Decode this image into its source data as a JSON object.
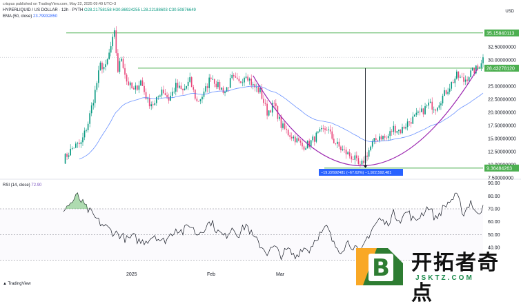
{
  "header": {
    "publisher": "crispus published on TradingView.com, May 22, 2025 09:49 UTC+3",
    "symbol": "HYPERLIQUID / US DOLLAR · 12h · PYTH",
    "ohlc": [
      "O28.21758158",
      "H30.86924255",
      "L28.22188603",
      "C30.50876649"
    ],
    "ema_label": "EMA (50, close)",
    "ema_value": "23.79932850",
    "rsi_label": "RSI (14, close)",
    "rsi_value": "72.90",
    "currency": "USD",
    "brand": "TradingView"
  },
  "watermark": {
    "text": "开拓者奇点",
    "sub": "JSKTZ.COM"
  },
  "colors": {
    "up": "#089981",
    "down": "#e9477b",
    "ema": "#2962ff",
    "arc": "#9c27b0",
    "level": "#4caf50",
    "rsi": "#131722",
    "measure": "#2962ff"
  },
  "chart_data": {
    "type": "candlestick",
    "price_axis": {
      "min": 7.5,
      "max": 37.5,
      "ticks": [
        "32.50000000",
        "30.00000000",
        "25.00000000",
        "22.50000000",
        "20.00000000",
        "17.50000000",
        "15.00000000",
        "12.50000000",
        "10.00000000",
        "7.50000000"
      ],
      "tick_values": [
        32.5,
        30,
        25,
        22.5,
        20,
        17.5,
        15,
        12.5,
        10,
        7.5
      ]
    },
    "x_labels": [
      "2025",
      "Feb",
      "Mar"
    ],
    "levels": [
      {
        "label": "35.15840113",
        "value": 35.1584
      },
      {
        "label": "28.43278120",
        "value": 28.4328
      },
      {
        "label": "9.36484263",
        "value": 9.3648
      }
    ],
    "measure_label": "−19.22692481 (−67.62%) −1,922,592,481",
    "close_marker": "30.50876649",
    "rsi": {
      "ticks": [
        "90.00",
        "80.00",
        "70.00",
        "60.00",
        "50.00",
        "40.00"
      ],
      "tick_values": [
        90,
        80,
        70,
        60,
        50,
        40
      ],
      "overbought": 70,
      "oversold": 30,
      "min": 26,
      "max": 92
    },
    "path_points": [
      [
        0,
        11.0
      ],
      [
        6,
        13.5
      ],
      [
        10,
        14.0
      ],
      [
        14,
        18.0
      ],
      [
        18,
        24.0
      ],
      [
        21,
        29.0
      ],
      [
        24,
        28.5
      ],
      [
        27,
        32.5
      ],
      [
        29,
        35.0
      ],
      [
        31,
        28.0
      ],
      [
        33,
        30.5
      ],
      [
        36,
        26.0
      ],
      [
        40,
        24.0
      ],
      [
        44,
        26.0
      ],
      [
        48,
        22.0
      ],
      [
        52,
        21.5
      ],
      [
        56,
        24.5
      ],
      [
        60,
        22.5
      ],
      [
        64,
        25.0
      ],
      [
        68,
        24.0
      ],
      [
        72,
        26.0
      ],
      [
        76,
        22.0
      ],
      [
        80,
        23.5
      ],
      [
        84,
        27.0
      ],
      [
        88,
        25.0
      ],
      [
        92,
        24.0
      ],
      [
        96,
        26.5
      ],
      [
        100,
        25.5
      ],
      [
        104,
        27.5
      ],
      [
        108,
        25.0
      ],
      [
        112,
        24.0
      ],
      [
        116,
        20.0
      ],
      [
        120,
        21.5
      ],
      [
        124,
        17.5
      ],
      [
        128,
        16.0
      ],
      [
        132,
        15.0
      ],
      [
        136,
        13.5
      ],
      [
        140,
        14.0
      ],
      [
        144,
        15.5
      ],
      [
        148,
        16.5
      ],
      [
        150,
        17.0
      ],
      [
        154,
        14.5
      ],
      [
        158,
        13.0
      ],
      [
        162,
        12.0
      ],
      [
        166,
        11.0
      ],
      [
        169,
        9.4
      ],
      [
        172,
        11.5
      ],
      [
        176,
        14.0
      ],
      [
        180,
        15.5
      ],
      [
        184,
        15.0
      ],
      [
        188,
        17.0
      ],
      [
        192,
        16.5
      ],
      [
        196,
        18.0
      ],
      [
        200,
        19.0
      ],
      [
        204,
        20.0
      ],
      [
        208,
        21.5
      ],
      [
        212,
        21.0
      ],
      [
        216,
        23.0
      ],
      [
        220,
        25.0
      ],
      [
        224,
        27.0
      ],
      [
        228,
        26.0
      ],
      [
        232,
        27.5
      ],
      [
        236,
        28.5
      ],
      [
        239,
        30.5
      ]
    ],
    "rsi_points": [
      [
        0,
        70
      ],
      [
        4,
        74
      ],
      [
        8,
        80
      ],
      [
        12,
        72
      ],
      [
        16,
        66
      ],
      [
        20,
        60
      ],
      [
        24,
        56
      ],
      [
        28,
        52
      ],
      [
        32,
        50
      ],
      [
        36,
        46
      ],
      [
        40,
        48
      ],
      [
        44,
        44
      ],
      [
        48,
        46
      ],
      [
        52,
        50
      ],
      [
        56,
        44
      ],
      [
        60,
        48
      ],
      [
        64,
        55
      ],
      [
        68,
        52
      ],
      [
        72,
        58
      ],
      [
        76,
        50
      ],
      [
        80,
        55
      ],
      [
        84,
        60
      ],
      [
        88,
        52
      ],
      [
        92,
        48
      ],
      [
        96,
        56
      ],
      [
        100,
        50
      ],
      [
        104,
        58
      ],
      [
        108,
        48
      ],
      [
        112,
        42
      ],
      [
        116,
        36
      ],
      [
        120,
        40
      ],
      [
        124,
        34
      ],
      [
        128,
        38
      ],
      [
        132,
        32
      ],
      [
        136,
        40
      ],
      [
        140,
        38
      ],
      [
        144,
        48
      ],
      [
        148,
        52
      ],
      [
        150,
        56
      ],
      [
        154,
        42
      ],
      [
        158,
        38
      ],
      [
        162,
        44
      ],
      [
        166,
        40
      ],
      [
        169,
        33
      ],
      [
        172,
        45
      ],
      [
        176,
        55
      ],
      [
        180,
        62
      ],
      [
        184,
        58
      ],
      [
        188,
        66
      ],
      [
        192,
        62
      ],
      [
        196,
        68
      ],
      [
        200,
        60
      ],
      [
        204,
        66
      ],
      [
        208,
        72
      ],
      [
        212,
        62
      ],
      [
        216,
        70
      ],
      [
        220,
        76
      ],
      [
        224,
        80
      ],
      [
        228,
        66
      ],
      [
        232,
        76
      ],
      [
        236,
        64
      ],
      [
        239,
        72.9
      ]
    ]
  }
}
